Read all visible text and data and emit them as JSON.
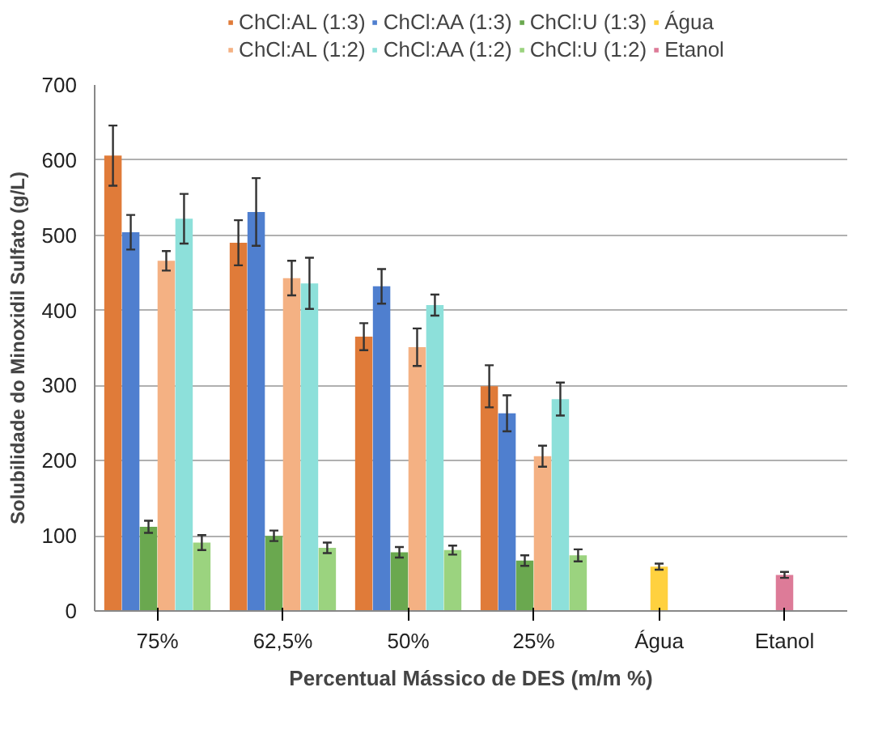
{
  "chart_data": {
    "type": "bar",
    "xlabel": "Percentual Mássico de DES (m/m %)",
    "ylabel": "Solubilidade do Minoxidil Sulfato (g/L)",
    "categories": [
      "75%",
      "62,5%",
      "50%",
      "25%",
      "Água",
      "Etanol"
    ],
    "ylim": [
      0,
      700
    ],
    "yticks": [
      0,
      100,
      200,
      300,
      400,
      500,
      600,
      700
    ],
    "grid": "y",
    "legend": "top",
    "series": [
      {
        "name": "ChCl:AL (1:3)",
        "color": "#e07b39",
        "values": [
          606,
          490,
          365,
          299,
          null,
          null
        ],
        "errors": [
          40,
          30,
          18,
          28,
          null,
          null
        ]
      },
      {
        "name": "ChCl:AA (1:3)",
        "color": "#4f7fcf",
        "values": [
          504,
          531,
          432,
          263,
          null,
          null
        ],
        "errors": [
          23,
          45,
          23,
          24,
          null,
          null
        ]
      },
      {
        "name": "ChCl:U (1:3)",
        "color": "#6aa84f",
        "values": [
          112,
          100,
          78,
          67,
          null,
          null
        ],
        "errors": [
          8,
          7,
          7,
          7,
          null,
          null
        ]
      },
      {
        "name": "Água",
        "color": "#ffd13f",
        "values": [
          null,
          null,
          null,
          null,
          59,
          null
        ],
        "errors": [
          null,
          null,
          null,
          null,
          4,
          null
        ]
      },
      {
        "name": "ChCl:AL (1:2)",
        "color": "#f4b183",
        "values": [
          466,
          443,
          351,
          206,
          null,
          null
        ],
        "errors": [
          13,
          23,
          25,
          14,
          null,
          null
        ]
      },
      {
        "name": "ChCl:AA (1:2)",
        "color": "#8de0da",
        "values": [
          522,
          436,
          407,
          282,
          null,
          null
        ],
        "errors": [
          33,
          34,
          14,
          22,
          null,
          null
        ]
      },
      {
        "name": "ChCl:U (1:2)",
        "color": "#9bd37f",
        "values": [
          91,
          84,
          81,
          74,
          null,
          null
        ],
        "errors": [
          10,
          7,
          6,
          8,
          null,
          null
        ]
      },
      {
        "name": "Etanol",
        "color": "#dd7b98",
        "values": [
          null,
          null,
          null,
          null,
          null,
          48
        ],
        "errors": [
          null,
          null,
          null,
          null,
          null,
          4
        ]
      }
    ]
  }
}
